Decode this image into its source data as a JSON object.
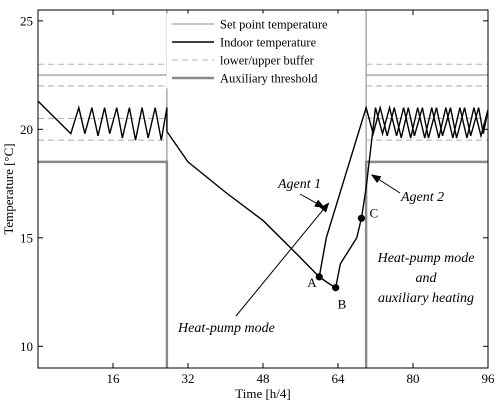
{
  "chart_data": {
    "type": "line",
    "xlabel": "Time [h/4]",
    "ylabel": "Temperature [°C]",
    "xlim": [
      0,
      96
    ],
    "ylim": [
      9,
      25.5
    ],
    "xticks": [
      16,
      32,
      48,
      64,
      80,
      96
    ],
    "yticks": [
      10,
      15,
      20,
      25
    ],
    "grid": false,
    "legend_position": "top-center",
    "legend": [
      {
        "name": "Set point temperature",
        "style": "thin-gray"
      },
      {
        "name": "Indoor temperature",
        "style": "black"
      },
      {
        "name": "lower/upper buffer",
        "style": "dashed-gray"
      },
      {
        "name": "Auxiliary threshold",
        "style": "thick-gray"
      }
    ],
    "series": [
      {
        "name": "Set point temperature",
        "segments": [
          [
            [
              0,
              22.5
            ],
            [
              27.5,
              22.5
            ],
            [
              27.5,
              25.5
            ]
          ],
          [
            [
              27.5,
              25.5
            ],
            [
              27.5,
              9
            ]
          ],
          [
            [
              70,
              9
            ],
            [
              70,
              25.5
            ]
          ],
          [
            [
              70,
              22.5
            ],
            [
              96,
              22.5
            ]
          ]
        ]
      },
      {
        "name": "lower/upper buffer",
        "segments": [
          [
            [
              0,
              23.0
            ],
            [
              27.5,
              23.0
            ]
          ],
          [
            [
              0,
              22.0
            ],
            [
              27.5,
              22.0
            ]
          ],
          [
            [
              70,
              23.0
            ],
            [
              96,
              23.0
            ]
          ],
          [
            [
              70,
              22.0
            ],
            [
              96,
              22.0
            ]
          ],
          [
            [
              0,
              20.5
            ],
            [
              27.5,
              20.5
            ]
          ],
          [
            [
              0,
              19.5
            ],
            [
              27.5,
              19.5
            ]
          ],
          [
            [
              70,
              20.5
            ],
            [
              96,
              20.5
            ]
          ],
          [
            [
              70,
              19.5
            ],
            [
              96,
              19.5
            ]
          ]
        ]
      },
      {
        "name": "Auxiliary threshold",
        "segments": [
          [
            [
              0,
              18.5
            ],
            [
              27.5,
              18.5
            ],
            [
              27.5,
              9
            ]
          ],
          [
            [
              70,
              9
            ],
            [
              70,
              18.5
            ],
            [
              96,
              18.5
            ]
          ]
        ]
      },
      {
        "name": "Indoor temperature (morning)",
        "points": [
          [
            0,
            21.3
          ],
          [
            7,
            19.8
          ],
          [
            8.7,
            21.0
          ],
          [
            10,
            19.8
          ],
          [
            11.5,
            21.0
          ],
          [
            12.8,
            19.7
          ],
          [
            14.2,
            21.0
          ],
          [
            15.3,
            19.8
          ],
          [
            16.8,
            21.0
          ],
          [
            18,
            19.6
          ],
          [
            19.5,
            21.0
          ],
          [
            20.8,
            19.5
          ],
          [
            22.2,
            21.0
          ],
          [
            23.5,
            19.6
          ],
          [
            25,
            21.0
          ],
          [
            26.3,
            19.5
          ],
          [
            27.5,
            21.0
          ],
          [
            27.5,
            19.9
          ]
        ]
      },
      {
        "name": "Indoor temperature (cooling)",
        "points": [
          [
            27.5,
            19.9
          ],
          [
            32,
            18.5
          ],
          [
            40,
            17.1
          ],
          [
            48,
            15.8
          ],
          [
            55,
            14.3
          ],
          [
            60,
            13.2
          ]
        ]
      },
      {
        "name": "Agent 1",
        "points": [
          [
            60,
            13.2
          ],
          [
            61.5,
            15.0
          ],
          [
            70,
            21.0
          ],
          [
            71.5,
            19.8
          ],
          [
            73,
            21.0
          ],
          [
            74.5,
            19.7
          ],
          [
            76,
            21.0
          ],
          [
            77.5,
            19.6
          ],
          [
            79,
            21.0
          ],
          [
            80.3,
            19.7
          ],
          [
            82,
            21.0
          ],
          [
            83.3,
            19.6
          ],
          [
            85,
            21.0
          ],
          [
            86.3,
            19.7
          ],
          [
            88,
            21.0
          ],
          [
            89.3,
            19.6
          ],
          [
            91,
            21.0
          ],
          [
            92.3,
            19.7
          ],
          [
            94,
            21.0
          ],
          [
            95,
            19.8
          ],
          [
            96,
            20.9
          ]
        ]
      },
      {
        "name": "Agent 2",
        "points": [
          [
            60,
            13.2
          ],
          [
            62,
            12.9
          ],
          [
            63.5,
            12.7
          ],
          [
            64.5,
            13.8
          ],
          [
            68,
            15.0
          ],
          [
            69,
            15.9
          ],
          [
            70,
            17.3
          ],
          [
            72,
            21.0
          ],
          [
            73.5,
            19.8
          ],
          [
            75,
            21.0
          ],
          [
            76.5,
            19.7
          ],
          [
            78,
            21.0
          ],
          [
            79.5,
            19.6
          ],
          [
            81,
            21.0
          ],
          [
            82.5,
            19.6
          ],
          [
            84,
            21.0
          ],
          [
            85.5,
            19.6
          ],
          [
            87,
            21.0
          ],
          [
            88.5,
            19.6
          ],
          [
            90,
            21.0
          ],
          [
            91.5,
            19.6
          ],
          [
            93,
            21.0
          ],
          [
            94.5,
            19.7
          ],
          [
            96,
            20.9
          ]
        ]
      }
    ],
    "markers": [
      {
        "label": "A",
        "x": 60,
        "y": 13.2
      },
      {
        "label": "B",
        "x": 63.5,
        "y": 12.7
      },
      {
        "label": "C",
        "x": 69,
        "y": 15.9
      }
    ],
    "annotations": [
      {
        "text": "Agent 1",
        "x": 56,
        "y": 17.6,
        "arrow_to": [
          61,
          16.4
        ]
      },
      {
        "text": "Agent 2",
        "x": 79,
        "y": 17.0,
        "arrow_to": [
          71.2,
          17.9
        ]
      },
      {
        "text": "Heat-pump mode",
        "x": 51,
        "y": 10.9,
        "arrow_to": [
          62,
          16.6
        ]
      },
      {
        "text_lines": [
          "Heat-pump mode",
          "and",
          "auxiliary heating"
        ],
        "x": 80,
        "y": 14.3
      }
    ]
  }
}
